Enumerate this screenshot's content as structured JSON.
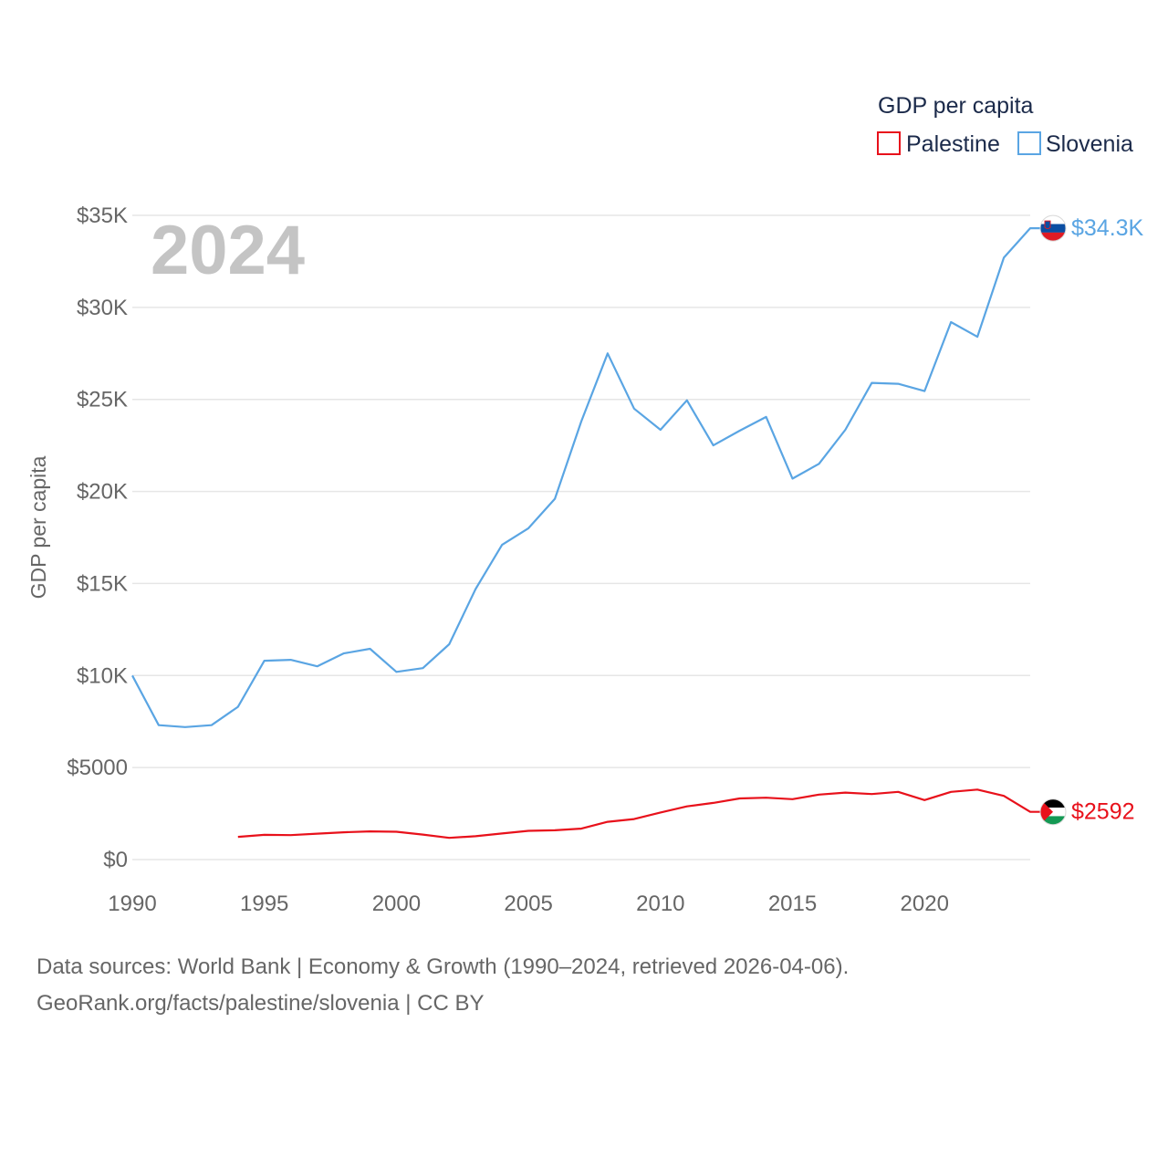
{
  "chart_data": {
    "type": "line",
    "title": "GDP per capita",
    "year_label": "2024",
    "xlabel": "",
    "ylabel": "GDP per capita",
    "xlim": [
      1990,
      2024
    ],
    "ylim": [
      0,
      35000
    ],
    "x_ticks": [
      1990,
      1995,
      2000,
      2005,
      2010,
      2015,
      2020
    ],
    "y_ticks": [
      0,
      5000,
      10000,
      15000,
      20000,
      25000,
      30000,
      35000
    ],
    "y_tick_labels": [
      "$0",
      "$5000",
      "$10K",
      "$15K",
      "$20K",
      "$25K",
      "$30K",
      "$35K"
    ],
    "grid": true,
    "legend_position": "top-right",
    "series": [
      {
        "name": "Palestine",
        "color": "#e8111b",
        "end_label": "$2592",
        "flag_icon": "palestine-flag-icon",
        "x": [
          1994,
          1995,
          1996,
          1997,
          1998,
          1999,
          2000,
          2001,
          2002,
          2003,
          2004,
          2005,
          2006,
          2007,
          2008,
          2009,
          2010,
          2011,
          2012,
          2013,
          2014,
          2015,
          2016,
          2017,
          2018,
          2019,
          2020,
          2021,
          2022,
          2023,
          2024
        ],
        "values": [
          1235,
          1345,
          1330,
          1410,
          1480,
          1530,
          1510,
          1360,
          1180,
          1270,
          1420,
          1560,
          1590,
          1680,
          2050,
          2200,
          2560,
          2890,
          3080,
          3320,
          3360,
          3280,
          3530,
          3640,
          3560,
          3680,
          3230,
          3680,
          3800,
          3460,
          2592
        ]
      },
      {
        "name": "Slovenia",
        "color": "#5aa5e3",
        "end_label": "$34.3K",
        "flag_icon": "slovenia-flag-icon",
        "x": [
          1990,
          1991,
          1992,
          1993,
          1994,
          1995,
          1996,
          1997,
          1998,
          1999,
          2000,
          2001,
          2002,
          2003,
          2004,
          2005,
          2006,
          2007,
          2008,
          2009,
          2010,
          2011,
          2012,
          2013,
          2014,
          2015,
          2016,
          2017,
          2018,
          2019,
          2020,
          2021,
          2022,
          2023,
          2024
        ],
        "values": [
          10000,
          7300,
          7200,
          7300,
          8300,
          10800,
          10850,
          10500,
          11200,
          11450,
          10200,
          10400,
          11700,
          14700,
          17100,
          18000,
          19600,
          23800,
          27500,
          24500,
          23350,
          24950,
          22500,
          23300,
          24050,
          20700,
          21500,
          23350,
          25900,
          25850,
          25450,
          29200,
          28400,
          32700,
          34300
        ]
      }
    ]
  },
  "footer": {
    "sources": "Data sources: World Bank | Economy & Growth (1990–2024, retrieved 2026-04-06).",
    "credit": "GeoRank.org/facts/palestine/slovenia | CC BY"
  }
}
